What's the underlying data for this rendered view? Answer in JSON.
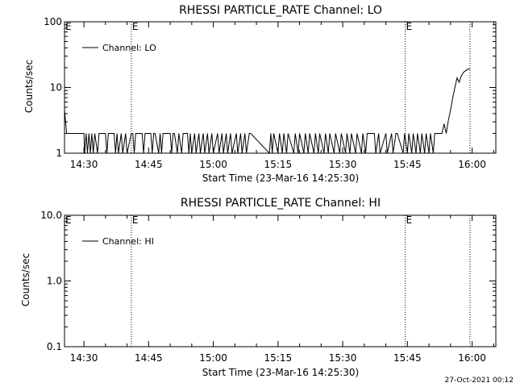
{
  "chart_data": [
    {
      "type": "line",
      "title": "RHESSI PARTICLE_RATE Channel: LO",
      "xlabel": "Start Time (23-Mar-16 14:25:30)",
      "ylabel": "Counts/sec",
      "yscale": "log",
      "ylim": [
        1,
        100
      ],
      "xlim": [
        "14:25:30",
        "16:05:30"
      ],
      "ytick_labels": [
        "1",
        "10",
        "100"
      ],
      "xtick_labels": [
        "14:30",
        "14:45",
        "15:00",
        "15:15",
        "15:30",
        "15:45",
        "16:00"
      ],
      "event_markers": [
        {
          "time": "14:41:00",
          "label": "E"
        },
        {
          "time": "15:44:30",
          "label": "E"
        },
        {
          "time": "15:59:30",
          "label": ""
        }
      ],
      "corner_markers": [
        "E"
      ],
      "legend": "Channel: LO",
      "series": [
        {
          "name": "Channel: LO",
          "x": [
            "14:25:30",
            "14:26:00",
            "14:26:30",
            "14:27:00",
            "14:30:00",
            "14:30:10",
            "14:30:30",
            "14:30:50",
            "14:31:10",
            "14:31:30",
            "14:31:50",
            "14:32:10",
            "14:32:30",
            "14:33:10",
            "14:33:30",
            "14:35:00",
            "14:35:20",
            "14:35:40",
            "14:36:00",
            "14:37:00",
            "14:37:20",
            "14:37:40",
            "14:38:00",
            "14:38:40",
            "14:39:00",
            "14:39:40",
            "14:40:00",
            "14:41:00",
            "14:41:20",
            "14:41:40",
            "14:42:00",
            "14:43:30",
            "14:43:50",
            "14:44:10",
            "14:44:30",
            "14:45:30",
            "14:45:50",
            "14:46:10",
            "14:46:30",
            "14:47:20",
            "14:47:40",
            "14:48:00",
            "14:48:20",
            "14:50:00",
            "14:50:20",
            "14:50:40",
            "14:51:00",
            "14:51:40",
            "14:52:00",
            "14:52:40",
            "14:53:00",
            "14:54:00",
            "14:54:20",
            "14:54:40",
            "14:55:00",
            "14:55:40",
            "14:56:00",
            "14:56:40",
            "14:57:00",
            "14:57:40",
            "14:58:00",
            "14:58:40",
            "14:59:00",
            "14:59:40",
            "15:00:00",
            "15:01:00",
            "15:01:20",
            "15:02:00",
            "15:02:20",
            "15:03:00",
            "15:03:20",
            "15:04:00",
            "15:04:20",
            "15:05:20",
            "15:05:40",
            "15:06:20",
            "15:06:40",
            "15:07:20",
            "15:07:40",
            "15:08:20",
            "15:08:40",
            "15:13:00",
            "15:13:20",
            "15:13:40",
            "15:14:00",
            "15:15:00",
            "15:15:20",
            "15:16:00",
            "15:16:20",
            "15:17:00",
            "15:17:20",
            "15:18:40",
            "15:19:00",
            "15:19:40",
            "15:20:00",
            "15:21:00",
            "15:21:20",
            "15:22:00",
            "15:22:20",
            "15:23:20",
            "15:23:40",
            "15:24:20",
            "15:24:40",
            "15:25:40",
            "15:26:00",
            "15:26:40",
            "15:27:00",
            "15:28:00",
            "15:28:20",
            "15:29:20",
            "15:29:40",
            "15:30:40",
            "15:31:00",
            "15:31:40",
            "15:32:00",
            "15:33:00",
            "15:33:20",
            "15:34:20",
            "15:34:40",
            "15:35:20",
            "15:35:40",
            "15:37:20",
            "15:37:40",
            "15:38:20",
            "15:38:40",
            "15:40:00",
            "15:40:20",
            "15:41:20",
            "15:41:40",
            "15:42:20",
            "15:42:40",
            "15:44:00",
            "15:44:20",
            "15:45:00",
            "15:45:20",
            "15:46:00",
            "15:46:20",
            "15:47:00",
            "15:47:20",
            "15:48:00",
            "15:48:20",
            "15:49:00",
            "15:49:20",
            "15:50:00",
            "15:50:20",
            "15:51:00",
            "15:51:20",
            "15:52:00",
            "15:52:20",
            "15:53:00",
            "15:53:30",
            "15:54:00",
            "15:54:30",
            "15:55:00",
            "15:55:30",
            "15:56:00",
            "15:56:30",
            "15:57:00",
            "15:57:30",
            "15:58:00",
            "15:58:30",
            "15:59:00",
            "15:59:30"
          ],
          "y": [
            4.5,
            2,
            2,
            2,
            2,
            1,
            2,
            1,
            2,
            1,
            2,
            1,
            2,
            1,
            2,
            2,
            1,
            2,
            2,
            2,
            1,
            2,
            1,
            2,
            1,
            2,
            1,
            2,
            2,
            1,
            2,
            2,
            1,
            2,
            2,
            2,
            1,
            2,
            2,
            1,
            2,
            1,
            2,
            2,
            1,
            2,
            2,
            1,
            2,
            1,
            2,
            2,
            1,
            2,
            1,
            2,
            1,
            2,
            1,
            2,
            1,
            2,
            1,
            2,
            1,
            2,
            1,
            2,
            1,
            2,
            1,
            2,
            1,
            2,
            1,
            2,
            1,
            2,
            1,
            2,
            2,
            1,
            2,
            1,
            2,
            1,
            2,
            1,
            2,
            1,
            2,
            1,
            2,
            1,
            2,
            1,
            2,
            1,
            2,
            1,
            2,
            1,
            2,
            1,
            2,
            1,
            2,
            1,
            2,
            1,
            2,
            1,
            2,
            1,
            2,
            1,
            2,
            1,
            2,
            1,
            2,
            2,
            1,
            2,
            1,
            2,
            1,
            2,
            1,
            2,
            2,
            1,
            2,
            1,
            2,
            1,
            2,
            1,
            2,
            1,
            2,
            1,
            2,
            1,
            2,
            1,
            2,
            2,
            2,
            2,
            2.8,
            2,
            3.2,
            4.5,
            7,
            10,
            14,
            12,
            15,
            17,
            18,
            19,
            19
          ]
        }
      ]
    },
    {
      "type": "line",
      "title": "RHESSI PARTICLE_RATE Channel: HI",
      "xlabel": "Start Time (23-Mar-16 14:25:30)",
      "ylabel": "Counts/sec",
      "yscale": "log",
      "ylim": [
        0.1,
        10
      ],
      "xlim": [
        "14:25:30",
        "16:05:30"
      ],
      "ytick_labels": [
        "0.1",
        "1.0",
        "10.0"
      ],
      "xtick_labels": [
        "14:30",
        "14:45",
        "15:00",
        "15:15",
        "15:30",
        "15:45",
        "16:00"
      ],
      "event_markers": [
        {
          "time": "14:41:00",
          "label": "E"
        },
        {
          "time": "15:44:30",
          "label": "E"
        },
        {
          "time": "15:59:30",
          "label": ""
        }
      ],
      "corner_markers": [
        "E"
      ],
      "legend": "Channel: HI",
      "series": [
        {
          "name": "Channel: HI",
          "x": [],
          "y": []
        }
      ]
    }
  ],
  "footer": {
    "timestamp": "27-Oct-2021 00:12"
  }
}
